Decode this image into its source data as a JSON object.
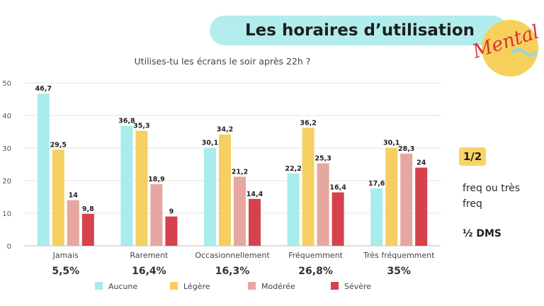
{
  "header": {
    "title": "Les horaires d’utilisation"
  },
  "logo": {
    "text": "Mental",
    "icon": "mental-logo-icon",
    "circle_color": "#f6d05a",
    "ink_color": "#d8323a"
  },
  "side": {
    "badge": "1/2",
    "note": "freq ou très freq",
    "dms": "½ DMS"
  },
  "chart_data": {
    "type": "bar",
    "title": "Utilises-tu les écrans le soir après 22h ?",
    "xlabel": "",
    "ylabel": "",
    "ylim": [
      0,
      50
    ],
    "yticks": [
      0,
      10,
      20,
      30,
      40,
      50
    ],
    "grid": true,
    "legend_position": "bottom",
    "categories": [
      "Jamais",
      "Rarement",
      "Occasionnellement",
      "Fréquemment",
      "Très fréquemment"
    ],
    "category_percentages": [
      "5,5%",
      "16,4%",
      "16,3%",
      "26,8%",
      "35%"
    ],
    "series": [
      {
        "name": "Aucune",
        "color": "#a8ecec",
        "values": [
          46.7,
          36.8,
          30.1,
          22.2,
          17.6
        ],
        "labels": [
          "46,7",
          "36,8",
          "30,1",
          "22,2",
          "17,6"
        ]
      },
      {
        "name": "Légère",
        "color": "#f6cf62",
        "values": [
          29.5,
          35.3,
          34.2,
          36.2,
          30.1
        ],
        "labels": [
          "29,5",
          "35,3",
          "34,2",
          "36,2",
          "30,1"
        ]
      },
      {
        "name": "Modérée",
        "color": "#e7a7a1",
        "values": [
          14,
          18.9,
          21.2,
          25.3,
          28.3
        ],
        "labels": [
          "14",
          "18,9",
          "21,2",
          "25,3",
          "28,3"
        ]
      },
      {
        "name": "Sévère",
        "color": "#d6424c",
        "values": [
          9.8,
          9,
          14.4,
          16.4,
          24
        ],
        "labels": [
          "9,8",
          "9",
          "14,4",
          "16,4",
          "24"
        ]
      }
    ]
  }
}
